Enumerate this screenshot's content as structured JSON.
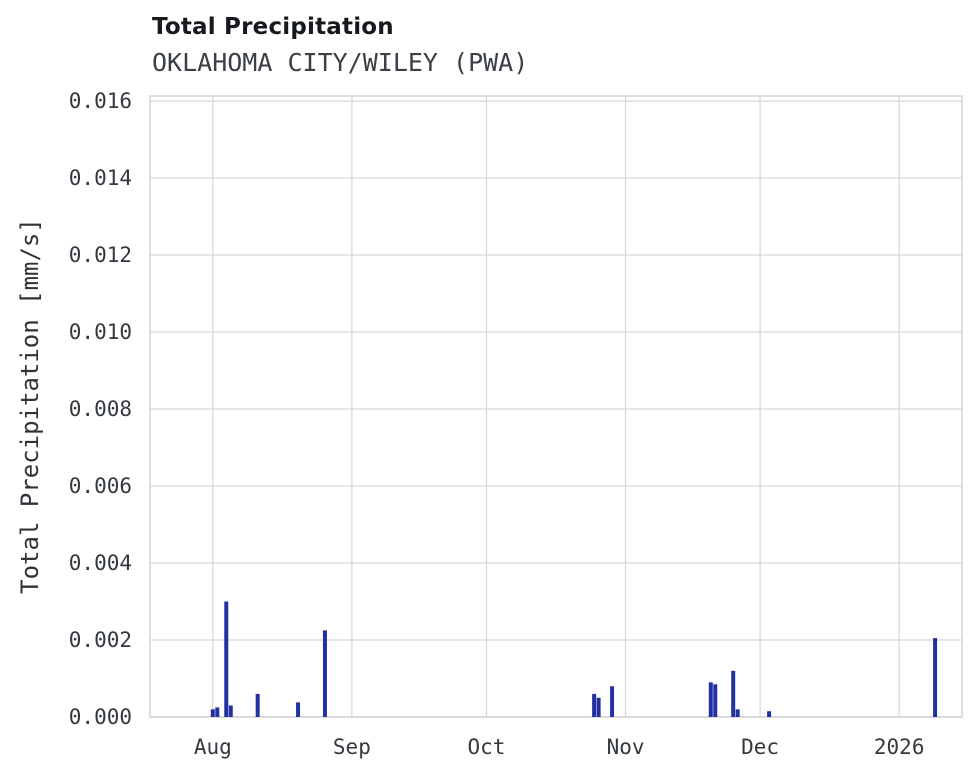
{
  "chart_data": {
    "type": "bar",
    "title": "Total Precipitation",
    "subtitle": "OKLAHOMA CITY/WILEY (PWA)",
    "ylabel": "Total Precipitation [mm/s]",
    "xlabel": "",
    "grid": true,
    "legend": "none",
    "bar_color": "#2331a0",
    "grid_color": "#d7d7d7",
    "frame_color": "#cfcfcf",
    "x_domain": [
      "2025-07-18",
      "2026-01-15"
    ],
    "ylim": [
      0,
      0.01613
    ],
    "y_ticks": [
      0.0,
      0.002,
      0.004,
      0.006,
      0.008,
      0.01,
      0.012,
      0.014,
      0.016
    ],
    "x_ticks": [
      {
        "date": "2025-08-01",
        "label": "Aug"
      },
      {
        "date": "2025-09-01",
        "label": "Sep"
      },
      {
        "date": "2025-10-01",
        "label": "Oct"
      },
      {
        "date": "2025-11-01",
        "label": "Nov"
      },
      {
        "date": "2025-12-01",
        "label": "Dec"
      },
      {
        "date": "2026-01-01",
        "label": "2026"
      }
    ],
    "points": [
      {
        "date": "2025-08-01",
        "value": 0.0002
      },
      {
        "date": "2025-08-02",
        "value": 0.00025
      },
      {
        "date": "2025-08-04",
        "value": 0.003
      },
      {
        "date": "2025-08-05",
        "value": 0.0003
      },
      {
        "date": "2025-08-11",
        "value": 0.0006
      },
      {
        "date": "2025-08-20",
        "value": 0.00038
      },
      {
        "date": "2025-08-26",
        "value": 0.00225
      },
      {
        "date": "2025-10-25",
        "value": 0.0006
      },
      {
        "date": "2025-10-26",
        "value": 0.0005
      },
      {
        "date": "2025-10-29",
        "value": 0.0008
      },
      {
        "date": "2025-11-20",
        "value": 0.0009
      },
      {
        "date": "2025-11-21",
        "value": 0.00085
      },
      {
        "date": "2025-11-25",
        "value": 0.0012
      },
      {
        "date": "2025-11-26",
        "value": 0.0002
      },
      {
        "date": "2025-12-03",
        "value": 0.00015
      },
      {
        "date": "2026-01-09",
        "value": 0.00205
      }
    ]
  }
}
